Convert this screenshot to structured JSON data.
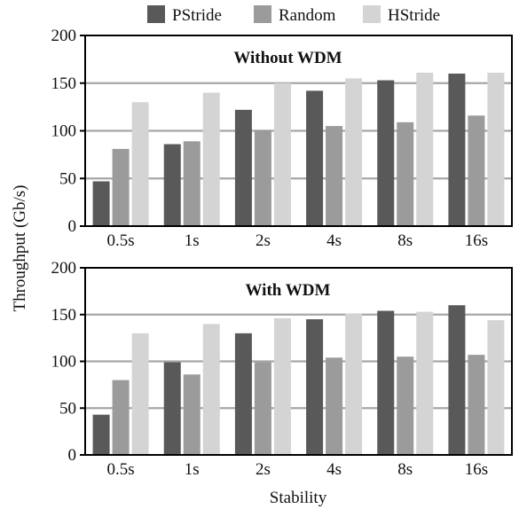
{
  "legend": {
    "placement": "top-center",
    "entries": [
      {
        "label": "PStride",
        "color": "#595959"
      },
      {
        "label": "Random",
        "color": "#9b9b9b"
      },
      {
        "label": "HStride",
        "color": "#d4d4d4"
      }
    ]
  },
  "ylabel": "Throughput (Gb/s)",
  "xlabel": "Stability",
  "chart_data": [
    {
      "type": "bar",
      "title": "Without WDM",
      "categories": [
        "0.5s",
        "1s",
        "2s",
        "4s",
        "8s",
        "16s"
      ],
      "series": [
        {
          "name": "PStride",
          "values": [
            47,
            86,
            122,
            142,
            153,
            160
          ]
        },
        {
          "name": "Random",
          "values": [
            81,
            89,
            101,
            105,
            109,
            116
          ]
        },
        {
          "name": "HStride",
          "values": [
            130,
            140,
            150,
            155,
            161,
            161
          ]
        }
      ],
      "ylim": [
        0,
        200
      ],
      "yticks": [
        0,
        50,
        100,
        150,
        200
      ],
      "grid": true
    },
    {
      "type": "bar",
      "title": "With WDM",
      "categories": [
        "0.5s",
        "1s",
        "2s",
        "4s",
        "8s",
        "16s"
      ],
      "series": [
        {
          "name": "PStride",
          "values": [
            43,
            99,
            130,
            145,
            154,
            160
          ]
        },
        {
          "name": "Random",
          "values": [
            80,
            86,
            99,
            104,
            105,
            107
          ]
        },
        {
          "name": "HStride",
          "values": [
            130,
            140,
            146,
            151,
            153,
            144
          ]
        }
      ],
      "ylim": [
        0,
        200
      ],
      "yticks": [
        0,
        50,
        100,
        150,
        200
      ],
      "grid": true
    }
  ]
}
